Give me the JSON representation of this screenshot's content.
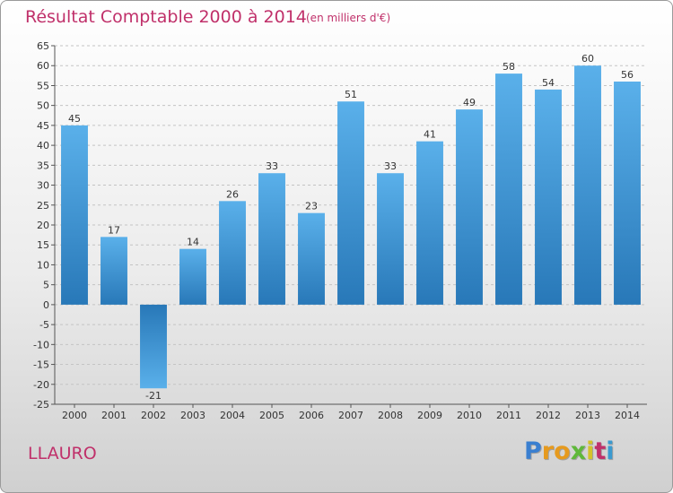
{
  "title": "Résultat Comptable 2000 à 2014",
  "subtitle": "(en milliers d'€)",
  "commune": "LLAURO",
  "logo": {
    "letters": [
      "P",
      "r",
      "o",
      "x",
      "i",
      "t",
      "i"
    ],
    "colors": [
      "#3a7fd0",
      "#e69a1e",
      "#e69a1e",
      "#5fb83a",
      "#d4c22a",
      "#c0306a",
      "#3a9ad0"
    ]
  },
  "colors": {
    "title": "#c0306a",
    "bar_top": "#5ab0ea",
    "bar_bottom": "#2878b8"
  },
  "chart_data": {
    "type": "bar",
    "categories": [
      "2000",
      "2001",
      "2002",
      "2003",
      "2004",
      "2005",
      "2006",
      "2007",
      "2008",
      "2009",
      "2010",
      "2011",
      "2012",
      "2013",
      "2014"
    ],
    "values": [
      45,
      17,
      -21,
      14,
      26,
      33,
      23,
      51,
      33,
      41,
      49,
      58,
      54,
      60,
      56
    ],
    "ylim": [
      -25,
      65
    ],
    "yticks": [
      65,
      60,
      55,
      50,
      45,
      40,
      35,
      30,
      25,
      20,
      15,
      10,
      5,
      0,
      -5,
      -10,
      -15,
      -20,
      -25
    ],
    "grid": true
  }
}
